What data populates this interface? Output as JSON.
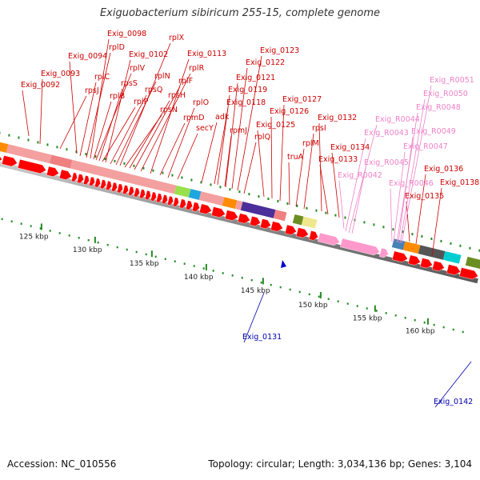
{
  "header": {
    "title": "Exiguobacterium sibiricum 255-15, complete genome"
  },
  "footer": {
    "accession": "Accession: NC_010556",
    "summary": "Topology: circular; Length: 3,034,136 bp; Genes: 3,104"
  },
  "map": {
    "kbp_ticks": [
      "125 kbp",
      "130 kbp",
      "135 kbp",
      "140 kbp",
      "145 kbp",
      "150 kbp",
      "155 kbp",
      "160 kbp"
    ],
    "genes_red": [
      "Exig_0092",
      "Exig_0093",
      "rpsJ",
      "Exig_0094",
      "rplC",
      "rplD",
      "Exig_0098",
      "rplB",
      "rplV",
      "rpsS",
      "rplP",
      "Exig_0102",
      "rpsQ",
      "rplN",
      "rplX",
      "rpsN",
      "rpsH",
      "rplF",
      "rplR",
      "Exig_0113",
      "rpmD",
      "rplO",
      "secY",
      "adk",
      "Exig_0118",
      "Exig_0119",
      "rpmJ",
      "Exig_0121",
      "Exig_0122",
      "Exig_0123",
      "rplQ",
      "Exig_0125",
      "Exig_0126",
      "Exig_0127",
      "truA",
      "rplM",
      "rpsI",
      "Exig_0132",
      "Exig_0133",
      "Exig_0134",
      "Exig_0135",
      "Exig_0136",
      "Exig_0138"
    ],
    "genes_pink": [
      "Exig_R0042",
      "Exig_R0043",
      "Exig_R0044",
      "Exig_R0045",
      "Exig_R0046",
      "Exig_R0047",
      "Exig_R0048",
      "Exig_R0049",
      "Exig_R0050",
      "Exig_R0051"
    ],
    "genes_blue": [
      "Exig_0131",
      "Exig_0142"
    ],
    "colors": {
      "cds": "#ff0000",
      "rna": "#ff99cc",
      "backbone": "#888888",
      "tick": "#228b22",
      "link_red": "#cc0000",
      "link_pink": "#ee82c8",
      "link_blue": "#0000aa"
    }
  }
}
